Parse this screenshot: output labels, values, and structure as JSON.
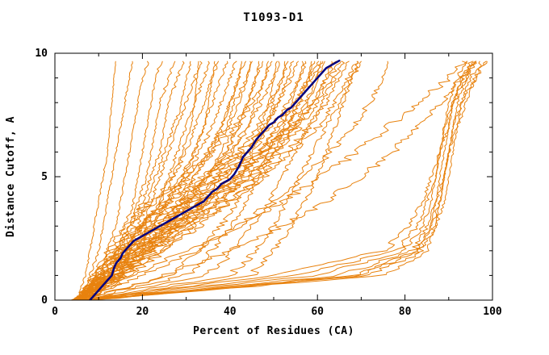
{
  "page": {
    "background": "#ffffff"
  },
  "chart_data": {
    "type": "line",
    "title": "T1093-D1",
    "xlabel": "Percent of Residues (CA)",
    "ylabel": "Distance Cutoff, A",
    "xlim": [
      0,
      100
    ],
    "ylim": [
      0,
      10
    ],
    "x_major_ticks": [
      0,
      20,
      40,
      60,
      80,
      100
    ],
    "x_minor_ticks": [
      10,
      30,
      50,
      70,
      90
    ],
    "y_major_ticks": [
      0,
      5,
      10
    ],
    "y_minor_ticks": [
      1,
      2,
      3,
      4,
      6,
      7,
      8,
      9
    ],
    "grid": false,
    "legend": "none",
    "y_max_plotted": 9.7,
    "colors": {
      "model_lines": "#e8820e",
      "highlight_line": "#000080",
      "axis": "#000000",
      "background": "#ffffff"
    },
    "highlight_series": {
      "points": [
        [
          8,
          0
        ],
        [
          10,
          0.4
        ],
        [
          11,
          0.6
        ],
        [
          12,
          0.8
        ],
        [
          13,
          1.0
        ],
        [
          13.5,
          1.3
        ],
        [
          14,
          1.5
        ],
        [
          15,
          1.7
        ],
        [
          15.5,
          1.9
        ],
        [
          16,
          2.0
        ],
        [
          17,
          2.2
        ],
        [
          18,
          2.4
        ],
        [
          20,
          2.6
        ],
        [
          22,
          2.8
        ],
        [
          24,
          3.0
        ],
        [
          26,
          3.2
        ],
        [
          28,
          3.4
        ],
        [
          30,
          3.6
        ],
        [
          32,
          3.8
        ],
        [
          34,
          4.0
        ],
        [
          35,
          4.2
        ],
        [
          36,
          4.4
        ],
        [
          37,
          4.5
        ],
        [
          38,
          4.7
        ],
        [
          39,
          4.8
        ],
        [
          40,
          4.9
        ],
        [
          41,
          5.1
        ],
        [
          42,
          5.4
        ],
        [
          42.5,
          5.6
        ],
        [
          43,
          5.8
        ],
        [
          44,
          6.0
        ],
        [
          45,
          6.2
        ],
        [
          46,
          6.5
        ],
        [
          47,
          6.7
        ],
        [
          48,
          6.9
        ],
        [
          49,
          7.1
        ],
        [
          50,
          7.2
        ],
        [
          51,
          7.4
        ],
        [
          52,
          7.5
        ],
        [
          53,
          7.7
        ],
        [
          54,
          7.8
        ],
        [
          55,
          8.0
        ],
        [
          56,
          8.2
        ],
        [
          57,
          8.4
        ],
        [
          58,
          8.6
        ],
        [
          59,
          8.8
        ],
        [
          60,
          9.0
        ],
        [
          61,
          9.2
        ],
        [
          62,
          9.4
        ],
        [
          63,
          9.5
        ],
        [
          64,
          9.6
        ],
        [
          65,
          9.7
        ]
      ]
    },
    "model_series_y_grid": [
      0,
      1,
      2,
      3,
      4,
      5,
      6,
      7,
      8,
      9,
      10
    ],
    "model_series": [
      [
        5,
        7,
        8,
        9,
        10,
        11,
        12,
        12.5,
        13,
        13.5,
        14
      ],
      [
        6,
        8,
        10,
        11,
        12,
        13,
        14,
        15,
        16,
        17,
        18
      ],
      [
        6,
        10,
        12,
        14,
        15,
        16,
        17,
        18,
        19,
        20,
        22
      ],
      [
        5,
        11,
        14,
        16,
        18,
        19,
        20,
        21,
        22,
        23,
        25
      ],
      [
        6,
        12,
        15,
        17,
        19,
        21,
        22,
        23,
        24,
        26,
        28
      ],
      [
        5,
        10,
        14,
        17,
        20,
        22,
        24,
        25,
        26,
        28,
        30
      ],
      [
        7,
        13,
        16,
        19,
        21,
        23,
        25,
        27,
        29,
        30,
        32
      ],
      [
        5,
        12,
        16,
        20,
        22,
        24,
        26,
        28,
        30,
        32,
        34
      ],
      [
        6,
        13,
        17,
        21,
        24,
        26,
        28,
        30,
        32,
        34,
        36
      ],
      [
        5,
        11,
        16,
        20,
        24,
        27,
        30,
        32,
        34,
        36,
        38
      ],
      [
        6,
        14,
        18,
        22,
        26,
        29,
        32,
        34,
        36,
        38,
        40
      ],
      [
        5,
        12,
        17,
        22,
        26,
        30,
        33,
        36,
        38,
        40,
        42
      ],
      [
        7,
        15,
        20,
        25,
        29,
        32,
        35,
        38,
        40,
        42,
        44
      ],
      [
        5,
        13,
        18,
        23,
        28,
        32,
        36,
        39,
        41,
        44,
        46
      ],
      [
        6,
        14,
        20,
        26,
        31,
        35,
        38,
        41,
        44,
        46,
        48
      ],
      [
        5,
        12,
        18,
        24,
        30,
        35,
        39,
        42,
        45,
        48,
        50
      ],
      [
        6,
        15,
        21,
        27,
        32,
        37,
        41,
        44,
        47,
        50,
        52
      ],
      [
        5,
        13,
        19,
        25,
        31,
        37,
        42,
        46,
        49,
        52,
        54
      ],
      [
        7,
        16,
        23,
        29,
        35,
        40,
        44,
        48,
        51,
        54,
        56
      ],
      [
        5,
        14,
        21,
        28,
        34,
        40,
        45,
        49,
        53,
        56,
        58
      ],
      [
        6,
        15,
        22,
        29,
        36,
        42,
        47,
        51,
        55,
        58,
        60
      ],
      [
        5,
        13,
        20,
        28,
        35,
        42,
        48,
        53,
        57,
        60,
        62
      ],
      [
        6,
        16,
        24,
        31,
        38,
        44,
        50,
        55,
        59,
        62,
        64
      ],
      [
        5,
        14,
        22,
        30,
        38,
        45,
        51,
        56,
        60,
        63,
        66
      ],
      [
        7,
        17,
        25,
        33,
        40,
        47,
        53,
        58,
        62,
        65,
        68
      ],
      [
        6,
        15,
        24,
        32,
        40,
        48,
        54,
        60,
        64,
        67,
        70
      ],
      [
        5,
        9,
        12,
        16,
        22,
        30,
        36,
        40,
        42,
        44,
        45
      ],
      [
        6,
        10,
        14,
        19,
        26,
        34,
        42,
        48,
        51,
        53,
        55
      ],
      [
        5,
        11,
        15,
        21,
        29,
        38,
        47,
        54,
        59,
        62,
        65
      ],
      [
        5,
        9,
        13,
        18,
        23,
        27,
        29,
        31,
        32,
        32.5,
        33
      ],
      [
        6,
        11,
        17,
        24,
        30,
        35,
        39,
        42,
        44,
        46,
        47
      ],
      [
        5,
        12,
        19,
        27,
        34,
        41,
        47,
        51,
        54,
        56,
        57
      ],
      [
        6,
        13,
        21,
        29,
        37,
        44,
        50,
        55,
        58,
        60,
        61
      ],
      [
        5,
        10,
        16,
        23,
        29,
        35,
        40,
        44,
        46,
        48,
        49
      ],
      [
        6,
        12,
        18,
        25,
        32,
        38,
        44,
        48,
        50,
        52,
        53
      ],
      [
        5,
        11,
        18,
        26,
        34,
        42,
        48,
        53,
        56,
        58,
        59
      ],
      [
        5,
        9,
        14,
        20,
        26,
        31,
        35,
        38,
        40,
        42,
        43
      ],
      [
        6,
        10,
        15,
        20,
        25,
        29,
        32,
        34,
        35,
        36,
        37
      ],
      [
        5,
        13,
        20,
        27,
        33,
        39,
        44,
        47,
        49,
        50,
        51
      ],
      [
        5,
        30,
        36,
        40,
        44,
        47,
        50,
        53,
        56,
        59,
        62
      ],
      [
        5,
        35,
        41,
        45,
        49,
        52,
        55,
        58,
        61,
        64,
        67
      ],
      [
        6,
        40,
        46,
        50,
        53,
        56,
        59,
        62,
        65,
        68,
        71
      ],
      [
        5,
        26,
        33,
        38,
        42,
        46,
        49,
        52,
        55,
        58,
        61
      ],
      [
        6,
        45,
        50,
        54,
        57,
        60,
        62,
        64,
        66,
        68,
        70
      ],
      [
        6,
        60,
        80,
        84,
        86,
        87,
        88,
        89,
        90,
        92,
        95
      ],
      [
        7,
        65,
        82,
        85,
        87,
        88,
        89,
        90,
        91,
        93,
        96
      ],
      [
        8,
        70,
        83,
        86,
        88,
        89,
        90,
        91,
        92,
        94,
        97
      ],
      [
        6,
        55,
        78,
        83,
        85,
        87,
        88,
        90,
        91,
        93,
        98
      ],
      [
        7,
        72,
        84,
        87,
        88,
        89,
        90,
        91,
        93,
        95,
        99
      ],
      [
        8,
        75,
        85,
        87,
        89,
        90,
        91,
        92,
        93,
        96,
        100
      ],
      [
        6,
        50,
        75,
        81,
        84,
        86,
        88,
        89,
        91,
        94,
        97
      ],
      [
        7,
        68,
        83,
        86,
        87,
        89,
        90,
        92,
        94,
        96,
        100
      ],
      [
        8,
        25,
        40,
        52,
        62,
        70,
        77,
        83,
        88,
        93,
        97
      ],
      [
        7,
        18,
        30,
        42,
        52,
        61,
        69,
        76,
        83,
        90,
        96
      ],
      [
        6,
        20,
        32,
        42,
        50,
        57,
        63,
        68,
        72,
        75,
        77
      ]
    ]
  }
}
